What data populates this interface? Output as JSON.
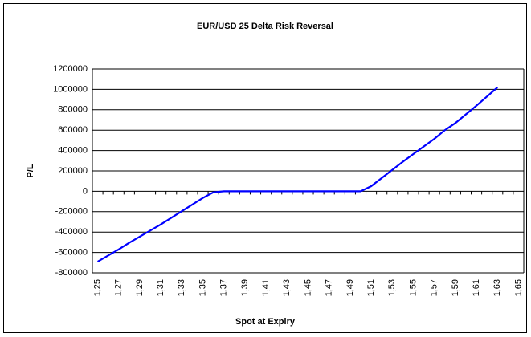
{
  "chart_data": {
    "type": "line",
    "title": "EUR/USD 25 Delta Risk Reversal",
    "x_label": "Spot at Expiry",
    "y_label": "P/L",
    "categories": [
      "1,25",
      null,
      "1,27",
      null,
      "1,29",
      null,
      "1,31",
      null,
      "1,33",
      null,
      "1,35",
      null,
      "1,37",
      null,
      "1,39",
      null,
      "1,41",
      null,
      "1,43",
      null,
      "1,45",
      null,
      "1,47",
      null,
      "1,49",
      null,
      "1,51",
      null,
      "1,53",
      null,
      "1,55",
      null,
      "1,57",
      null,
      "1,59",
      null,
      "1,61",
      null,
      "1,63",
      null,
      "1,65"
    ],
    "series": [
      {
        "name": "P/L",
        "color": "#0000ff",
        "values": [
          -690000,
          -630000,
          -570000,
          -505000,
          -445000,
          -385000,
          -325000,
          -260000,
          -195000,
          -130000,
          -65000,
          -10000,
          0,
          0,
          0,
          0,
          0,
          0,
          0,
          0,
          0,
          0,
          0,
          0,
          0,
          0,
          50000,
          130000,
          210000,
          290000,
          365000,
          440000,
          515000,
          600000,
          670000,
          755000,
          840000,
          930000,
          1020000,
          null,
          null
        ]
      }
    ],
    "ylim": [
      -800000,
      1200000
    ],
    "yticks": [
      -800000,
      -600000,
      -400000,
      -200000,
      0,
      200000,
      400000,
      600000,
      800000,
      1000000,
      1200000
    ],
    "grid": true
  }
}
